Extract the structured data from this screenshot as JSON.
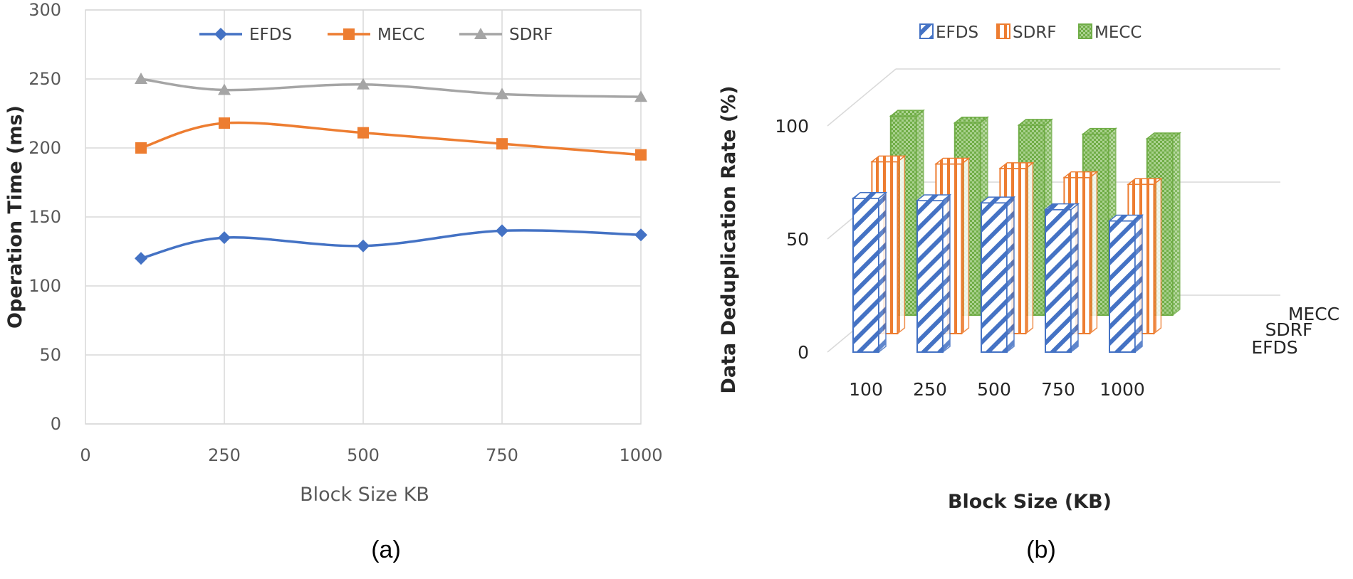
{
  "chart_data": [
    {
      "type": "line",
      "caption": "(a)",
      "xlabel": "Block Size KB",
      "ylabel": "Operation Time (ms)",
      "xlim": [
        0,
        1000
      ],
      "ylim": [
        0,
        300
      ],
      "x_ticks": [
        "0",
        "250",
        "500",
        "750",
        "1000"
      ],
      "y_ticks": [
        "0",
        "50",
        "100",
        "150",
        "200",
        "250",
        "300"
      ],
      "grid": true,
      "legend_position": "top",
      "x": [
        100,
        250,
        500,
        750,
        1000
      ],
      "series": [
        {
          "name": "EFDS",
          "values": [
            120,
            135,
            129,
            140,
            137
          ],
          "color": "#4472c4",
          "marker": "diamond"
        },
        {
          "name": "MECC",
          "values": [
            200,
            218,
            211,
            203,
            195
          ],
          "color": "#ed7d31",
          "marker": "square"
        },
        {
          "name": "SDRF",
          "values": [
            250,
            242,
            246,
            239,
            237
          ],
          "color": "#a5a5a5",
          "marker": "triangle"
        }
      ]
    },
    {
      "type": "bar",
      "style": "3d-column",
      "caption": "(b)",
      "xlabel": "Block Size (KB)",
      "ylabel": "Data Deduplication Rate (%)",
      "ylim": [
        0,
        100
      ],
      "y_ticks": [
        "0",
        "50",
        "100"
      ],
      "categories": [
        "100",
        "250",
        "500",
        "750",
        "1000"
      ],
      "depth_labels": [
        "MECC",
        "SDRF",
        "EFDS"
      ],
      "legend_position": "top",
      "legend": [
        "EFDS",
        "SDRF",
        "MECC"
      ],
      "series": [
        {
          "name": "EFDS",
          "values": [
            68,
            67,
            66,
            63,
            58
          ],
          "color": "#4472c4",
          "pattern": "diagonal-stripes"
        },
        {
          "name": "SDRF",
          "values": [
            76,
            75,
            73,
            69,
            66
          ],
          "color": "#ed7d31",
          "pattern": "vertical-stripes"
        },
        {
          "name": "MECC",
          "values": [
            88,
            85,
            84,
            80,
            78
          ],
          "color": "#70ad47",
          "pattern": "checker"
        }
      ]
    }
  ]
}
